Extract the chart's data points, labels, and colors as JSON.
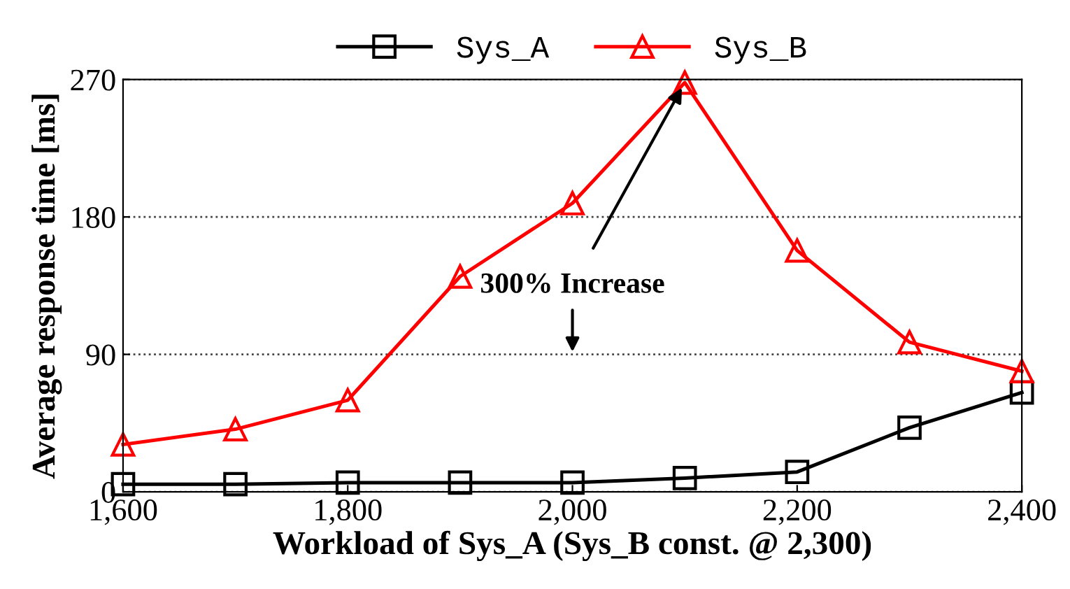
{
  "chart_data": {
    "type": "line",
    "xlabel": "Workload of Sys_A (Sys_B const. @ 2,300)",
    "ylabel": "Average response time [ms]",
    "x": [
      1600,
      1700,
      1800,
      1900,
      2000,
      2100,
      2200,
      2300,
      2400
    ],
    "series": [
      {
        "name": "Sys_A",
        "color": "#000000",
        "marker": "square",
        "values": [
          5,
          5,
          6,
          6,
          6,
          9,
          13,
          42,
          65
        ]
      },
      {
        "name": "Sys_B",
        "color": "#ff0000",
        "marker": "triangle",
        "values": [
          31,
          41,
          60,
          141,
          189,
          268,
          158,
          98,
          79
        ]
      }
    ],
    "xlim": [
      1600,
      2400
    ],
    "xticks": [
      {
        "value": 1600,
        "label": "1,600"
      },
      {
        "value": 1800,
        "label": "1,800"
      },
      {
        "value": 2000,
        "label": "2,000"
      },
      {
        "value": 2200,
        "label": "2,200"
      },
      {
        "value": 2400,
        "label": "2,400"
      }
    ],
    "ylim": [
      0,
      270
    ],
    "yticks": [
      0,
      90,
      180,
      270
    ],
    "grid": "y",
    "legend": "top",
    "line_style": "solid",
    "annotations": [
      {
        "text": "300% Increase",
        "x": 2100,
        "y": 268
      }
    ]
  }
}
